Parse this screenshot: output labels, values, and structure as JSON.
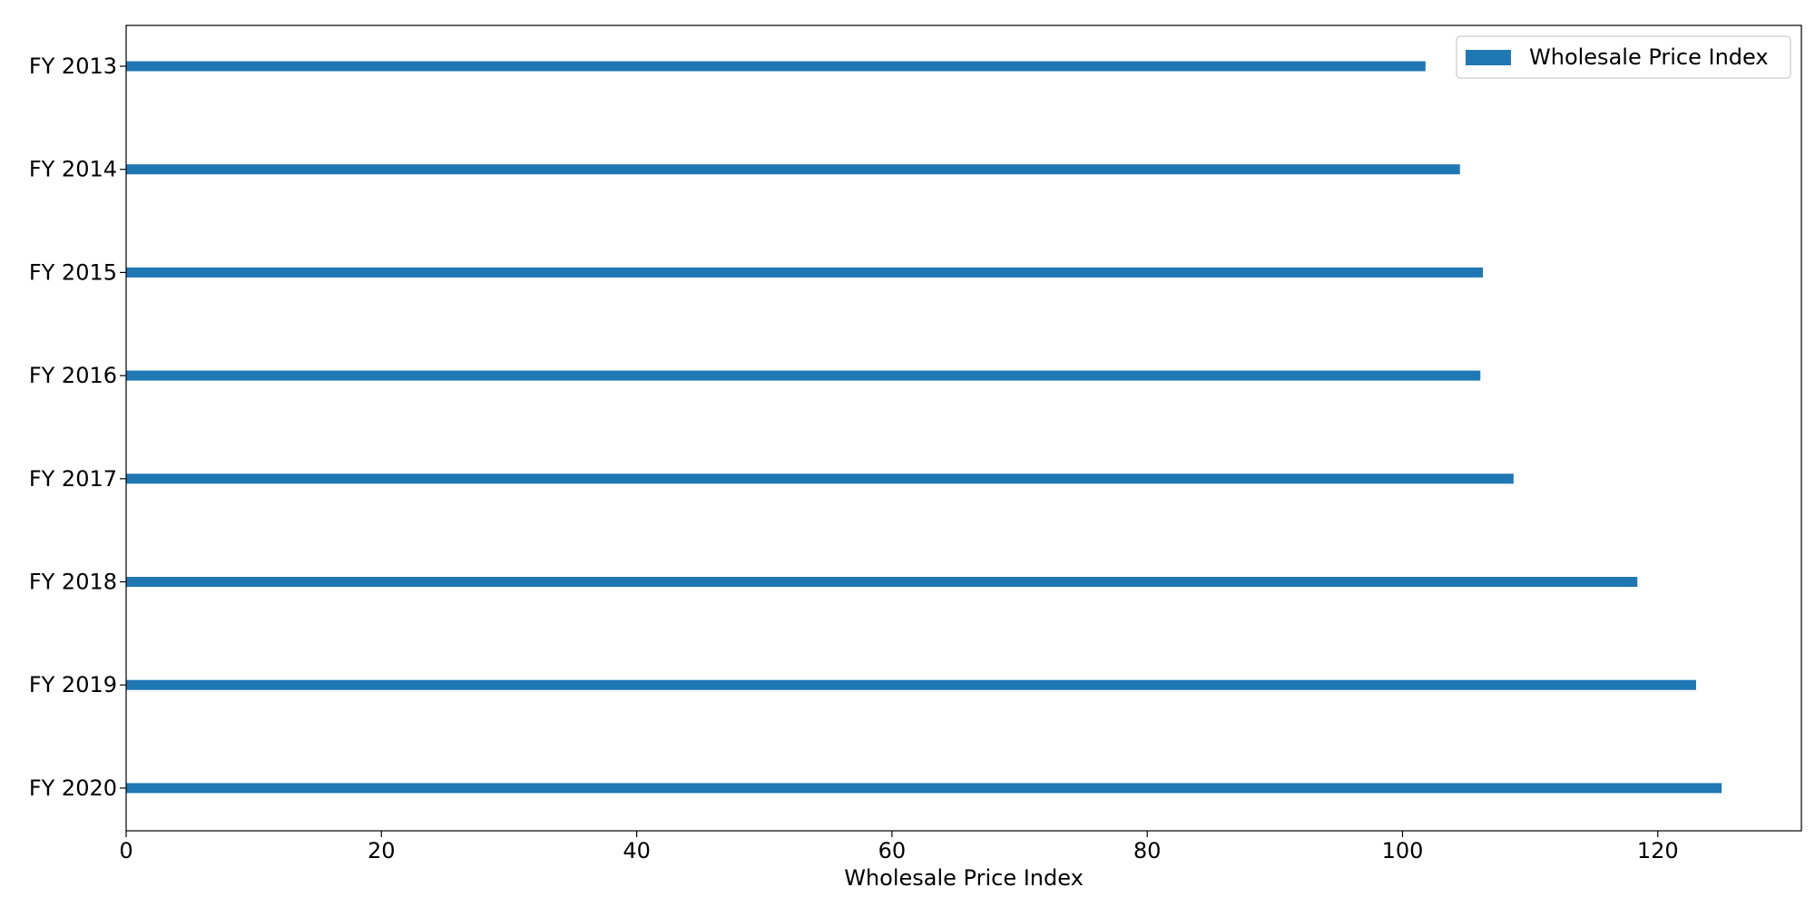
{
  "chart_data": {
    "type": "bar",
    "orientation": "horizontal",
    "categories": [
      "FY 2013",
      "FY 2014",
      "FY 2015",
      "FY 2016",
      "FY 2017",
      "FY 2018",
      "FY 2019",
      "FY 2020"
    ],
    "series": [
      {
        "name": "Wholesale Price Index",
        "values": [
          101.8,
          104.5,
          106.3,
          106.1,
          108.7,
          118.4,
          123.0,
          125.0
        ],
        "color": "#1f77b4"
      }
    ],
    "title": "",
    "xlabel": "Wholesale Price Index",
    "ylabel": "",
    "xlim": [
      0,
      131.25
    ],
    "xticks": [
      0,
      20,
      40,
      60,
      80,
      100,
      120
    ],
    "grid": false,
    "legend_position": "top-right"
  }
}
